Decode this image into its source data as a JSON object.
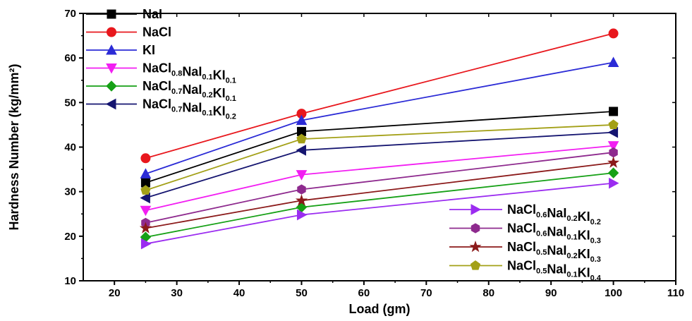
{
  "chart_data": {
    "type": "line",
    "title": "",
    "xlabel": "Load (gm)",
    "ylabel": "Hardness Number (kg/mm²)",
    "xlim": [
      15,
      110
    ],
    "ylim": [
      10,
      70
    ],
    "xticks": [
      20,
      30,
      40,
      50,
      60,
      70,
      80,
      90,
      100,
      110
    ],
    "yticks": [
      10,
      20,
      30,
      40,
      50,
      60,
      70
    ],
    "grid": false,
    "x": [
      25,
      50,
      100
    ],
    "series": [
      {
        "name": "NaI",
        "name_parts": [
          [
            "NaI",
            ""
          ]
        ],
        "color": "#000000",
        "marker": "square",
        "legend": "top-left",
        "values": [
          32.0,
          43.5,
          48.0
        ]
      },
      {
        "name": "NaCl",
        "name_parts": [
          [
            "NaCl",
            ""
          ]
        ],
        "color": "#e8171d",
        "marker": "circle",
        "legend": "top-left",
        "values": [
          37.5,
          47.5,
          65.5
        ]
      },
      {
        "name": "KI",
        "name_parts": [
          [
            "KI",
            ""
          ]
        ],
        "color": "#2b2bd6",
        "marker": "triangle-up",
        "legend": "top-left",
        "values": [
          34.0,
          46.0,
          59.0
        ]
      },
      {
        "name": "NaCl0.8NaI0.1KI0.1",
        "name_parts": [
          [
            "NaCl",
            "0.8"
          ],
          [
            "NaI",
            "0.1"
          ],
          [
            "KI",
            "0.1"
          ]
        ],
        "color": "#f21ef2",
        "marker": "triangle-down",
        "legend": "top-left",
        "values": [
          25.8,
          33.8,
          40.3
        ]
      },
      {
        "name": "NaCl0.7NaI0.2KI0.1",
        "name_parts": [
          [
            "NaCl",
            "0.7"
          ],
          [
            "NaI",
            "0.2"
          ],
          [
            "KI",
            "0.1"
          ]
        ],
        "color": "#16a016",
        "marker": "diamond",
        "legend": "top-left",
        "values": [
          19.8,
          26.5,
          34.2
        ]
      },
      {
        "name": "NaCl0.7NaI0.1KI0.2",
        "name_parts": [
          [
            "NaCl",
            "0.7"
          ],
          [
            "NaI",
            "0.1"
          ],
          [
            "KI",
            "0.2"
          ]
        ],
        "color": "#151570",
        "marker": "triangle-left",
        "legend": "top-left",
        "values": [
          28.6,
          39.3,
          43.3
        ]
      },
      {
        "name": "NaCl0.6NaI0.2KI0.2",
        "name_parts": [
          [
            "NaCl",
            "0.6"
          ],
          [
            "NaI",
            "0.2"
          ],
          [
            "KI",
            "0.2"
          ]
        ],
        "color": "#9b2cf0",
        "marker": "triangle-right",
        "legend": "bottom-right",
        "values": [
          18.3,
          24.8,
          31.9
        ]
      },
      {
        "name": "NaCl0.6NaI0.1KI0.3",
        "name_parts": [
          [
            "NaCl",
            "0.6"
          ],
          [
            "NaI",
            "0.1"
          ],
          [
            "KI",
            "0.3"
          ]
        ],
        "color": "#8e2a8e",
        "marker": "hexagon",
        "legend": "bottom-right",
        "values": [
          23.0,
          30.5,
          38.8
        ]
      },
      {
        "name": "NaCl0.5NaI0.2KI0.3",
        "name_parts": [
          [
            "NaCl",
            "0.5"
          ],
          [
            "NaI",
            "0.2"
          ],
          [
            "KI",
            "0.3"
          ]
        ],
        "color": "#8b1a1a",
        "marker": "star",
        "legend": "bottom-right",
        "values": [
          21.8,
          28.0,
          36.5
        ]
      },
      {
        "name": "NaCl0.5NaI0.1KI0.4",
        "name_parts": [
          [
            "NaCl",
            "0.5"
          ],
          [
            "NaI",
            "0.1"
          ],
          [
            "KI",
            "0.4"
          ]
        ],
        "color": "#a3a017",
        "marker": "pentagon",
        "legend": "bottom-right",
        "values": [
          30.3,
          41.8,
          45.0
        ]
      }
    ]
  }
}
